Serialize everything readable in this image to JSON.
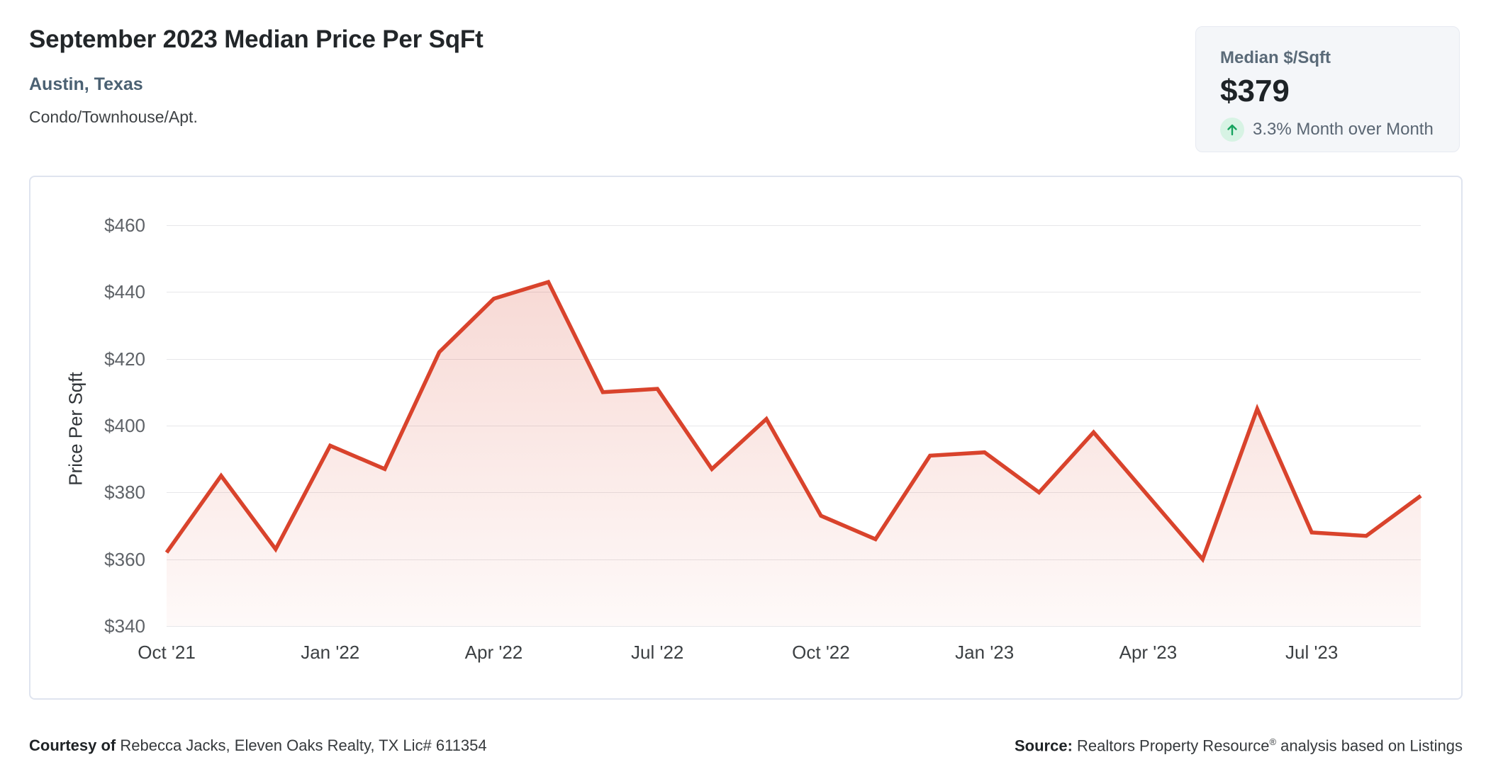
{
  "header": {
    "title": "September 2023 Median Price Per SqFt",
    "location": "Austin, Texas",
    "property_type": "Condo/Townhouse/Apt."
  },
  "stat_card": {
    "label": "Median $/Sqft",
    "value": "$379",
    "delta_text": "3.3% Month over Month",
    "trend_icon": "arrow-up-icon",
    "trend_color": "#17a35f",
    "trend_bg": "#d7f3e4"
  },
  "chart_data": {
    "type": "area",
    "title": "September 2023 Median Price Per SqFt",
    "xlabel": "",
    "ylabel": "Price Per Sqft",
    "x": [
      "Oct '21",
      "Nov '21",
      "Dec '21",
      "Jan '22",
      "Feb '22",
      "Mar '22",
      "Apr '22",
      "May '22",
      "Jun '22",
      "Jul '22",
      "Aug '22",
      "Sep '22",
      "Oct '22",
      "Nov '22",
      "Dec '22",
      "Jan '23",
      "Feb '23",
      "Mar '23",
      "Apr '23",
      "May '23",
      "Jun '23",
      "Jul '23",
      "Aug '23",
      "Sep '23"
    ],
    "values": [
      362,
      385,
      363,
      394,
      387,
      422,
      438,
      443,
      410,
      411,
      387,
      402,
      373,
      366,
      391,
      392,
      380,
      398,
      379,
      360,
      405,
      368,
      367,
      379
    ],
    "x_tick_indices": [
      0,
      3,
      6,
      9,
      12,
      15,
      18,
      21
    ],
    "x_tick_labels": [
      "Oct '21",
      "Jan '22",
      "Apr '22",
      "Jul '22",
      "Oct '22",
      "Jan '23",
      "Apr '23",
      "Jul '23"
    ],
    "y_ticks": [
      460,
      440,
      420,
      400,
      380,
      360,
      340
    ],
    "y_tick_prefix": "$",
    "ylim": [
      340,
      460
    ],
    "grid": true,
    "legend": "none",
    "line_color": "#d9432c",
    "fill_color": "#d9432c",
    "fill_alpha_top": 0.2,
    "fill_alpha_bottom": 0.03
  },
  "footer": {
    "courtesy_bold": "Courtesy of",
    "courtesy_rest": " Rebecca Jacks, Eleven Oaks Realty, TX Lic# 611354",
    "source_bold": "Source:",
    "source_rest": " Realtors Property Resource",
    "source_sup": "®",
    "source_tail": " analysis based on Listings"
  }
}
